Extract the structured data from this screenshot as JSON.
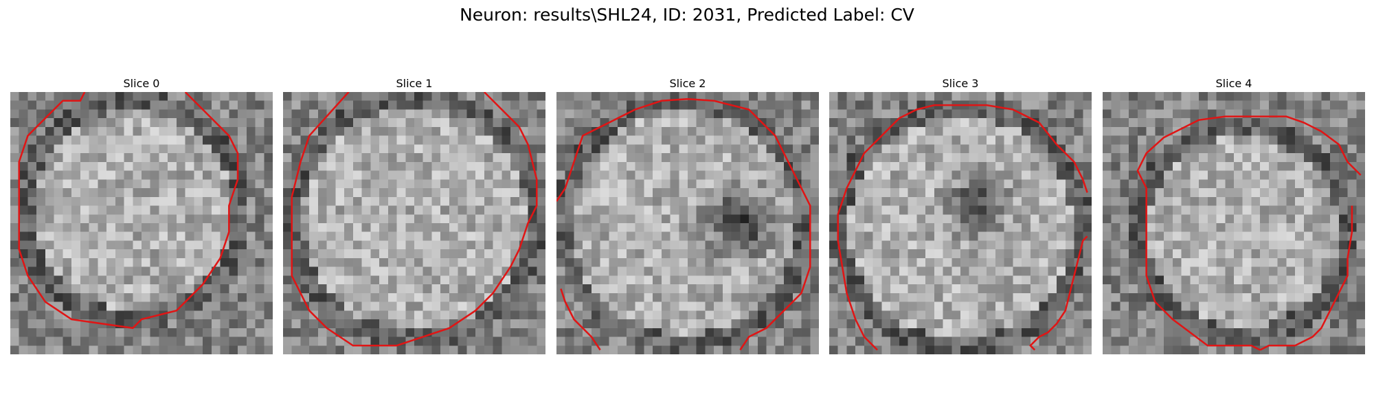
{
  "figure": {
    "title": "Neuron: results\\SHL24, ID: 2031, Predicted Label: CV"
  },
  "panels": [
    {
      "title": "Slice 0"
    },
    {
      "title": "Slice 1"
    },
    {
      "title": "Slice 2"
    },
    {
      "title": "Slice 3"
    },
    {
      "title": "Slice 4"
    }
  ],
  "colors": {
    "contour": "#e01515",
    "background": "#ffffff"
  }
}
